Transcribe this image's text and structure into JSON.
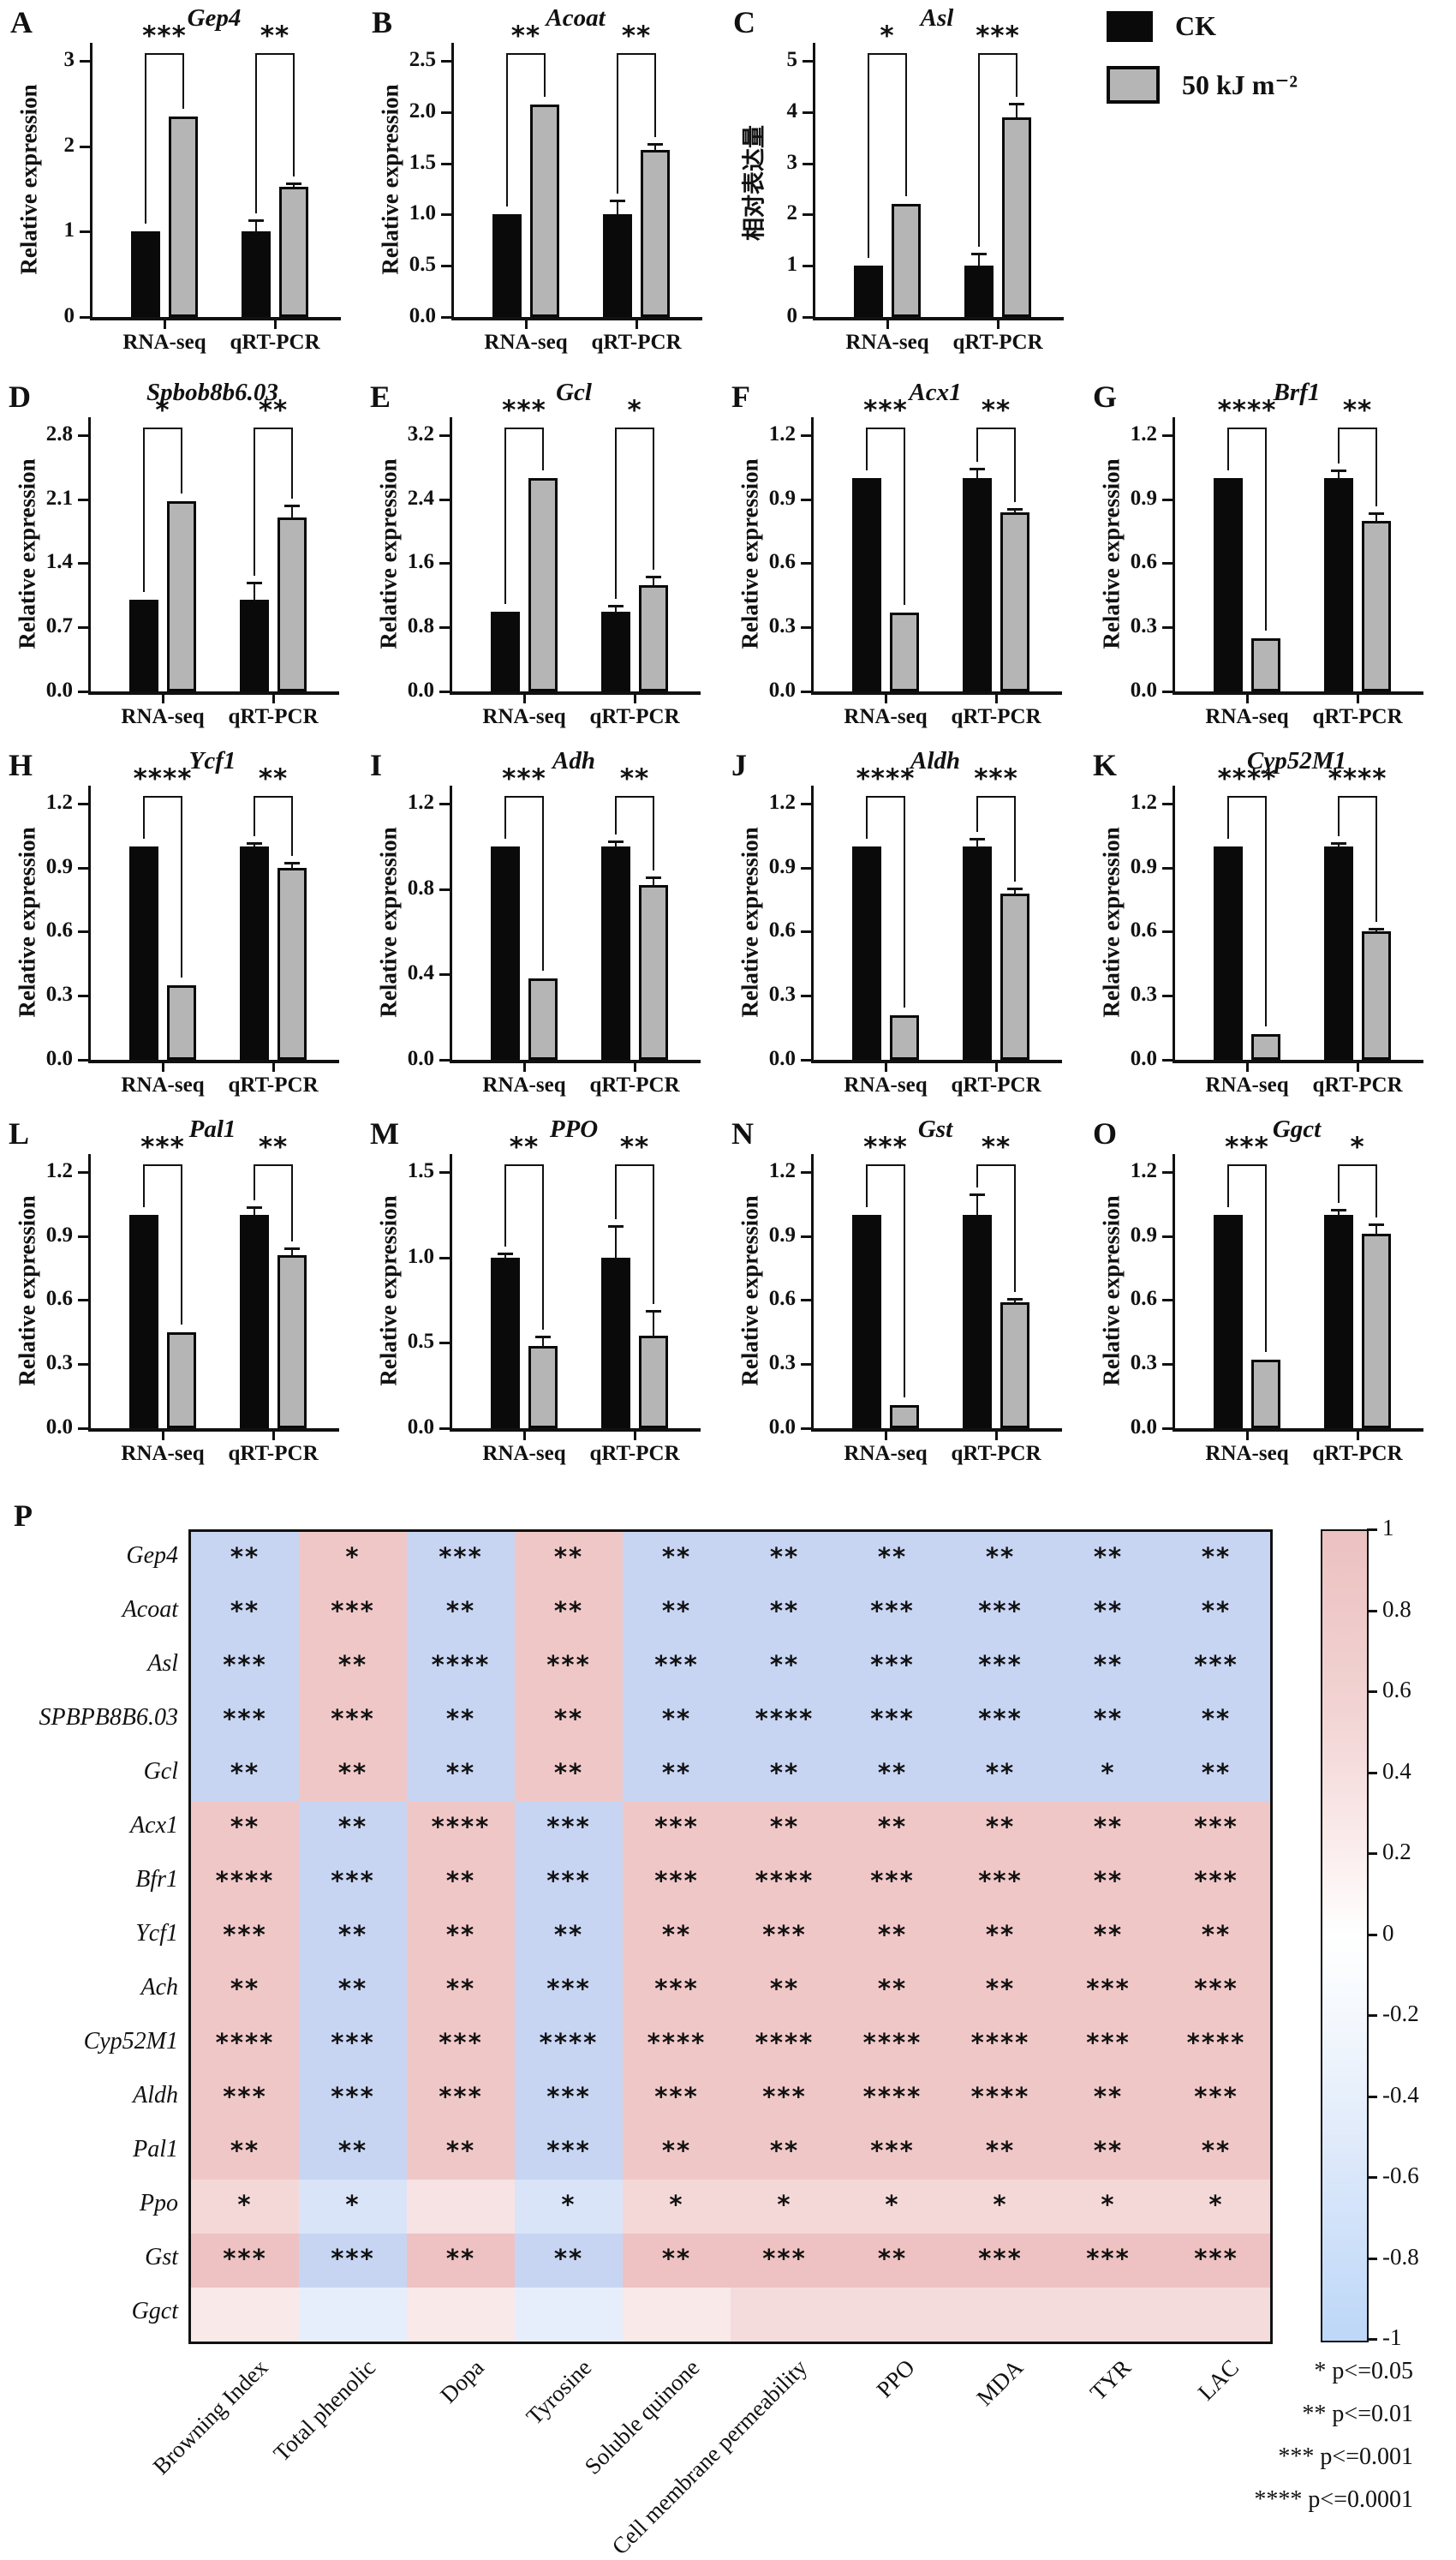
{
  "legend": {
    "items": [
      {
        "label": "CK",
        "color": "#0a0a0a"
      },
      {
        "label": "50 kJ m⁻²",
        "color": "#b5b5b5"
      }
    ]
  },
  "significance_key": [
    "* p<=0.05",
    "** p<=0.01",
    "*** p<=0.001",
    "**** p<=0.0001"
  ],
  "chart_data": [
    {
      "type": "bar",
      "panel": "A",
      "title": "Gep4",
      "ylabel": "Relative expression",
      "categories": [
        "RNA-seq",
        "qRT-PCR"
      ],
      "ylim": [
        0,
        3
      ],
      "yticks": [
        "0",
        "1",
        "2",
        "3"
      ],
      "series": [
        {
          "name": "CK",
          "values": [
            1.0,
            1.0
          ],
          "errors": [
            0,
            0.12
          ]
        },
        {
          "name": "50 kJ m⁻²",
          "values": [
            2.35,
            1.52
          ],
          "errors": [
            0,
            0.03
          ]
        }
      ],
      "sig": [
        "***",
        "**"
      ]
    },
    {
      "type": "bar",
      "panel": "B",
      "title": "Acoat",
      "ylabel": "Relative expression",
      "categories": [
        "RNA-seq",
        "qRT-PCR"
      ],
      "ylim": [
        0,
        2.5
      ],
      "yticks": [
        "0.0",
        "0.5",
        "1.0",
        "1.5",
        "2.0",
        "2.5"
      ],
      "series": [
        {
          "name": "CK",
          "values": [
            1.0,
            1.0
          ],
          "errors": [
            0,
            0.13
          ]
        },
        {
          "name": "50 kJ m⁻²",
          "values": [
            2.07,
            1.63
          ],
          "errors": [
            0,
            0.05
          ]
        }
      ],
      "sig": [
        "**",
        "**"
      ]
    },
    {
      "type": "bar",
      "panel": "C",
      "title": "Asl",
      "ylabel": "相对表达量",
      "categories": [
        "RNA-seq",
        "qRT-PCR"
      ],
      "ylim": [
        0,
        5
      ],
      "yticks": [
        "0",
        "1",
        "2",
        "3",
        "4",
        "5"
      ],
      "series": [
        {
          "name": "CK",
          "values": [
            1.0,
            1.0
          ],
          "errors": [
            0,
            0.22
          ]
        },
        {
          "name": "50 kJ m⁻²",
          "values": [
            2.2,
            3.9
          ],
          "errors": [
            0,
            0.25
          ]
        }
      ],
      "sig": [
        "*",
        "***"
      ]
    },
    {
      "type": "bar",
      "panel": "D",
      "title": "Spbob8b6.03",
      "ylabel": "Relative expression",
      "categories": [
        "RNA-seq",
        "qRT-PCR"
      ],
      "ylim": [
        0,
        2.8
      ],
      "yticks": [
        "0.0",
        "0.7",
        "1.4",
        "2.1",
        "2.8"
      ],
      "series": [
        {
          "name": "CK",
          "values": [
            1.0,
            1.0
          ],
          "errors": [
            0,
            0.18
          ]
        },
        {
          "name": "50 kJ m⁻²",
          "values": [
            2.08,
            1.9
          ],
          "errors": [
            0,
            0.12
          ]
        }
      ],
      "sig": [
        "*",
        "**"
      ]
    },
    {
      "type": "bar",
      "panel": "E",
      "title": "Gcl",
      "ylabel": "Relative expression",
      "categories": [
        "RNA-seq",
        "qRT-PCR"
      ],
      "ylim": [
        0,
        3.2
      ],
      "yticks": [
        "0.0",
        "0.8",
        "1.6",
        "2.4",
        "3.2"
      ],
      "series": [
        {
          "name": "CK",
          "values": [
            1.0,
            1.0
          ],
          "errors": [
            0,
            0.06
          ]
        },
        {
          "name": "50 kJ m⁻²",
          "values": [
            2.66,
            1.33
          ],
          "errors": [
            0,
            0.09
          ]
        }
      ],
      "sig": [
        "***",
        "*"
      ]
    },
    {
      "type": "bar",
      "panel": "F",
      "title": "Acx1",
      "ylabel": "Relative expression",
      "categories": [
        "RNA-seq",
        "qRT-PCR"
      ],
      "ylim": [
        0,
        1.2
      ],
      "yticks": [
        "0.0",
        "0.3",
        "0.6",
        "0.9",
        "1.2"
      ],
      "series": [
        {
          "name": "CK",
          "values": [
            1.0,
            1.0
          ],
          "errors": [
            0,
            0.04
          ]
        },
        {
          "name": "50 kJ m⁻²",
          "values": [
            0.37,
            0.84
          ],
          "errors": [
            0,
            0.01
          ]
        }
      ],
      "sig": [
        "***",
        "**"
      ]
    },
    {
      "type": "bar",
      "panel": "G",
      "title": "Brf1",
      "ylabel": "Relative expression",
      "categories": [
        "RNA-seq",
        "qRT-PCR"
      ],
      "ylim": [
        0,
        1.2
      ],
      "yticks": [
        "0.0",
        "0.3",
        "0.6",
        "0.9",
        "1.2"
      ],
      "series": [
        {
          "name": "CK",
          "values": [
            1.0,
            1.0
          ],
          "errors": [
            0,
            0.03
          ]
        },
        {
          "name": "50 kJ m⁻²",
          "values": [
            0.25,
            0.8
          ],
          "errors": [
            0,
            0.03
          ]
        }
      ],
      "sig": [
        "****",
        "**"
      ]
    },
    {
      "type": "bar",
      "panel": "H",
      "title": "Ycf1",
      "ylabel": "Relative expression",
      "categories": [
        "RNA-seq",
        "qRT-PCR"
      ],
      "ylim": [
        0,
        1.2
      ],
      "yticks": [
        "0.0",
        "0.3",
        "0.6",
        "0.9",
        "1.2"
      ],
      "series": [
        {
          "name": "CK",
          "values": [
            1.0,
            1.0
          ],
          "errors": [
            0,
            0.01
          ]
        },
        {
          "name": "50 kJ m⁻²",
          "values": [
            0.35,
            0.9
          ],
          "errors": [
            0,
            0.02
          ]
        }
      ],
      "sig": [
        "****",
        "**"
      ]
    },
    {
      "type": "bar",
      "panel": "I",
      "title": "Adh",
      "ylabel": "Relative expression",
      "categories": [
        "RNA-seq",
        "qRT-PCR"
      ],
      "ylim": [
        0,
        1.2
      ],
      "yticks": [
        "0.0",
        "0.4",
        "0.8",
        "1.2"
      ],
      "series": [
        {
          "name": "CK",
          "values": [
            1.0,
            1.0
          ],
          "errors": [
            0,
            0.02
          ]
        },
        {
          "name": "50 kJ m⁻²",
          "values": [
            0.38,
            0.82
          ],
          "errors": [
            0,
            0.03
          ]
        }
      ],
      "sig": [
        "***",
        "**"
      ]
    },
    {
      "type": "bar",
      "panel": "J",
      "title": "Aldh",
      "ylabel": "Relative expression",
      "categories": [
        "RNA-seq",
        "qRT-PCR"
      ],
      "ylim": [
        0,
        1.2
      ],
      "yticks": [
        "0.0",
        "0.3",
        "0.6",
        "0.9",
        "1.2"
      ],
      "series": [
        {
          "name": "CK",
          "values": [
            1.0,
            1.0
          ],
          "errors": [
            0,
            0.03
          ]
        },
        {
          "name": "50 kJ m⁻²",
          "values": [
            0.21,
            0.78
          ],
          "errors": [
            0,
            0.02
          ]
        }
      ],
      "sig": [
        "****",
        "***"
      ]
    },
    {
      "type": "bar",
      "panel": "K",
      "title": "Cyp52M1",
      "ylabel": "Relative expression",
      "categories": [
        "RNA-seq",
        "qRT-PCR"
      ],
      "ylim": [
        0,
        1.2
      ],
      "yticks": [
        "0.0",
        "0.3",
        "0.6",
        "0.9",
        "1.2"
      ],
      "series": [
        {
          "name": "CK",
          "values": [
            1.0,
            1.0
          ],
          "errors": [
            0,
            0.01
          ]
        },
        {
          "name": "50 kJ m⁻²",
          "values": [
            0.12,
            0.6
          ],
          "errors": [
            0,
            0.01
          ]
        }
      ],
      "sig": [
        "****",
        "****"
      ]
    },
    {
      "type": "bar",
      "panel": "L",
      "title": "Pal1",
      "ylabel": "Relative expression",
      "categories": [
        "RNA-seq",
        "qRT-PCR"
      ],
      "ylim": [
        0,
        1.2
      ],
      "yticks": [
        "0.0",
        "0.3",
        "0.6",
        "0.9",
        "1.2"
      ],
      "series": [
        {
          "name": "CK",
          "values": [
            1.0,
            1.0
          ],
          "errors": [
            0,
            0.03
          ]
        },
        {
          "name": "50 kJ m⁻²",
          "values": [
            0.45,
            0.81
          ],
          "errors": [
            0,
            0.03
          ]
        }
      ],
      "sig": [
        "***",
        "**"
      ]
    },
    {
      "type": "bar",
      "panel": "M",
      "title": "PPO",
      "ylabel": "Relative expression",
      "categories": [
        "RNA-seq",
        "qRT-PCR"
      ],
      "ylim": [
        0,
        1.5
      ],
      "yticks": [
        "0.0",
        "0.5",
        "1.0",
        "1.5"
      ],
      "series": [
        {
          "name": "CK",
          "values": [
            1.0,
            1.0
          ],
          "errors": [
            0.02,
            0.18
          ]
        },
        {
          "name": "50 kJ m⁻²",
          "values": [
            0.48,
            0.54
          ],
          "errors": [
            0.05,
            0.14
          ]
        }
      ],
      "sig": [
        "**",
        "**"
      ]
    },
    {
      "type": "bar",
      "panel": "N",
      "title": "Gst",
      "ylabel": "Relative expression",
      "categories": [
        "RNA-seq",
        "qRT-PCR"
      ],
      "ylim": [
        0,
        1.2
      ],
      "yticks": [
        "0.0",
        "0.3",
        "0.6",
        "0.9",
        "1.2"
      ],
      "series": [
        {
          "name": "CK",
          "values": [
            1.0,
            1.0
          ],
          "errors": [
            0,
            0.09
          ]
        },
        {
          "name": "50 kJ m⁻²",
          "values": [
            0.11,
            0.59
          ],
          "errors": [
            0,
            0.01
          ]
        }
      ],
      "sig": [
        "***",
        "**"
      ]
    },
    {
      "type": "bar",
      "panel": "O",
      "title": "Ggct",
      "ylabel": "Relative expression",
      "categories": [
        "RNA-seq",
        "qRT-PCR"
      ],
      "ylim": [
        0,
        1.2
      ],
      "yticks": [
        "0.0",
        "0.3",
        "0.6",
        "0.9",
        "1.2"
      ],
      "series": [
        {
          "name": "CK",
          "values": [
            1.0,
            1.0
          ],
          "errors": [
            0,
            0.02
          ]
        },
        {
          "name": "50 kJ m⁻²",
          "values": [
            0.32,
            0.91
          ],
          "errors": [
            0,
            0.04
          ]
        }
      ],
      "sig": [
        "***",
        "*"
      ]
    },
    {
      "type": "heatmap",
      "panel": "P",
      "rows": [
        "Gep4",
        "Acoat",
        "Asl",
        "SPBPB8B6.03",
        "Gcl",
        "Acx1",
        "Bfr1",
        "Ycf1",
        "Ach",
        "Cyp52M1",
        "Aldh",
        "Pal1",
        "Ppo",
        "Gst",
        "Ggct"
      ],
      "columns": [
        "Browning Index",
        "Total phenolic",
        "Dopa",
        "Tyrosine",
        "Soluble quinone",
        "Cell membrane permeability",
        "PPO",
        "MDA",
        "TYR",
        "LAC"
      ],
      "stars": [
        [
          "**",
          "*",
          "***",
          "**",
          "**",
          "**",
          "**",
          "**",
          "**",
          "**"
        ],
        [
          "**",
          "***",
          "**",
          "**",
          "**",
          "**",
          "***",
          "***",
          "**",
          "**"
        ],
        [
          "***",
          "**",
          "****",
          "***",
          "***",
          "**",
          "***",
          "***",
          "**",
          "***"
        ],
        [
          "***",
          "***",
          "**",
          "**",
          "**",
          "****",
          "***",
          "***",
          "**",
          "**"
        ],
        [
          "**",
          "**",
          "**",
          "**",
          "**",
          "**",
          "**",
          "**",
          "*",
          "**"
        ],
        [
          "**",
          "**",
          "****",
          "***",
          "***",
          "**",
          "**",
          "**",
          "**",
          "***"
        ],
        [
          "****",
          "***",
          "**",
          "***",
          "***",
          "****",
          "***",
          "***",
          "**",
          "***"
        ],
        [
          "***",
          "**",
          "**",
          "**",
          "**",
          "***",
          "**",
          "**",
          "**",
          "**"
        ],
        [
          "**",
          "**",
          "**",
          "***",
          "***",
          "**",
          "**",
          "**",
          "***",
          "***"
        ],
        [
          "****",
          "***",
          "***",
          "****",
          "****",
          "****",
          "****",
          "****",
          "***",
          "****"
        ],
        [
          "***",
          "***",
          "***",
          "***",
          "***",
          "***",
          "****",
          "****",
          "**",
          "***"
        ],
        [
          "**",
          "**",
          "**",
          "***",
          "**",
          "**",
          "***",
          "**",
          "**",
          "**"
        ],
        [
          "*",
          "*",
          "",
          "*",
          "*",
          "*",
          "*",
          "*",
          "*",
          "*"
        ],
        [
          "***",
          "***",
          "**",
          "**",
          "**",
          "***",
          "**",
          "***",
          "***",
          "***"
        ],
        [
          "",
          "",
          "",
          "",
          "",
          "",
          "",
          "",
          "",
          ""
        ]
      ],
      "colors": [
        [
          "#c7d5f3",
          "#f0c7c7",
          "#c7d5f3",
          "#f0c7c7",
          "#c7d5f3",
          "#c7d5f3",
          "#c7d5f3",
          "#c7d5f3",
          "#c7d5f3",
          "#c7d5f3"
        ],
        [
          "#c7d5f3",
          "#f0c7c7",
          "#c7d5f3",
          "#f0c7c7",
          "#c7d5f3",
          "#c7d5f3",
          "#c7d5f3",
          "#c7d5f3",
          "#c7d5f3",
          "#c7d5f3"
        ],
        [
          "#c7d5f3",
          "#f0c7c7",
          "#c7d5f3",
          "#f0c7c7",
          "#c7d5f3",
          "#c7d5f3",
          "#c7d5f3",
          "#c7d5f3",
          "#c7d5f3",
          "#c7d5f3"
        ],
        [
          "#c7d5f3",
          "#f0c7c7",
          "#c7d5f3",
          "#f0c7c7",
          "#c7d5f3",
          "#c7d5f3",
          "#c7d5f3",
          "#c7d5f3",
          "#c7d5f3",
          "#c7d5f3"
        ],
        [
          "#c7d5f3",
          "#f0c7c7",
          "#c7d5f3",
          "#f0c7c7",
          "#c7d5f3",
          "#c7d5f3",
          "#c7d5f3",
          "#c7d5f3",
          "#c7d5f3",
          "#c7d5f3"
        ],
        [
          "#f0c7c7",
          "#c7d5f3",
          "#f0c7c7",
          "#c7d5f3",
          "#f0c7c7",
          "#f0c7c7",
          "#f0c7c7",
          "#f0c7c7",
          "#f0c7c7",
          "#f0c7c7"
        ],
        [
          "#f0c7c7",
          "#c7d5f3",
          "#f0c7c7",
          "#c7d5f3",
          "#f0c7c7",
          "#f0c7c7",
          "#f0c7c7",
          "#f0c7c7",
          "#f0c7c7",
          "#f0c7c7"
        ],
        [
          "#f0c7c7",
          "#c7d5f3",
          "#f0c7c7",
          "#c7d5f3",
          "#f0c7c7",
          "#f0c7c7",
          "#f0c7c7",
          "#f0c7c7",
          "#f0c7c7",
          "#f0c7c7"
        ],
        [
          "#f0c7c7",
          "#c7d5f3",
          "#f0c7c7",
          "#c7d5f3",
          "#f0c7c7",
          "#f0c7c7",
          "#f0c7c7",
          "#f0c7c7",
          "#f0c7c7",
          "#f0c7c7"
        ],
        [
          "#f0c7c7",
          "#c7d5f3",
          "#f0c7c7",
          "#c7d5f3",
          "#f0c7c7",
          "#f0c7c7",
          "#f0c7c7",
          "#f0c7c7",
          "#f0c7c7",
          "#f0c7c7"
        ],
        [
          "#f0c7c7",
          "#c7d5f3",
          "#f0c7c7",
          "#c7d5f3",
          "#f0c7c7",
          "#f0c7c7",
          "#f0c7c7",
          "#f0c7c7",
          "#f0c7c7",
          "#f0c7c7"
        ],
        [
          "#f0c7c7",
          "#c7d5f3",
          "#f0c7c7",
          "#c7d5f3",
          "#f0c7c7",
          "#f0c7c7",
          "#f0c7c7",
          "#f0c7c7",
          "#f0c7c7",
          "#f0c7c7"
        ],
        [
          "#f4d8d8",
          "#d9e4f8",
          "#f7e3e3",
          "#d9e4f8",
          "#f4d8d8",
          "#f4d8d8",
          "#f4d8d8",
          "#f4d8d8",
          "#f4d8d8",
          "#f4d8d8"
        ],
        [
          "#eec2c2",
          "#c7d5f3",
          "#eec2c2",
          "#c7d5f3",
          "#eec2c2",
          "#eec2c2",
          "#eec2c2",
          "#eec2c2",
          "#eec2c2",
          "#eec2c2"
        ],
        [
          "#f9e9e9",
          "#e7eefb",
          "#f9e9e9",
          "#e7eefb",
          "#f9e9e9",
          "#f4dcdc",
          "#f4dcdc",
          "#f4dcdc",
          "#f4dcdc",
          "#f4dcdc"
        ]
      ],
      "colorbar_ticks": [
        "1",
        "0.8",
        "0.6",
        "0.4",
        "0.2",
        "0",
        "-0.2",
        "-0.4",
        "-0.6",
        "-0.8",
        "-1"
      ]
    }
  ]
}
